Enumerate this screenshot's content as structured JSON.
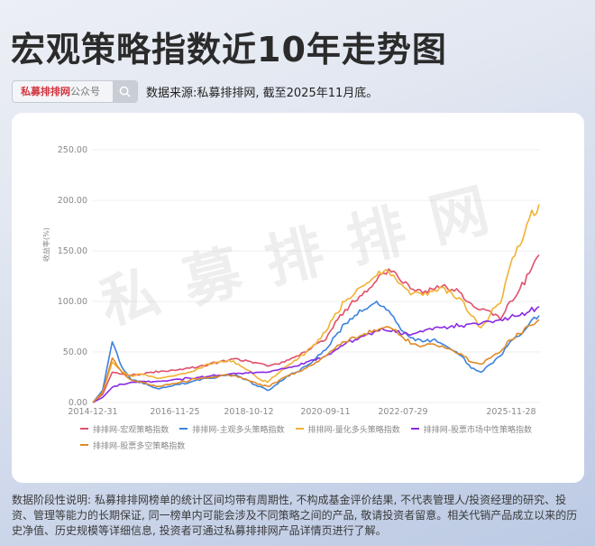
{
  "header": {
    "title": "宏观策略指数近10年走势图",
    "search_brand": "私募排排网",
    "search_suffix": "公众号",
    "search_icon": "search-icon",
    "source_note": "数据来源:私募排排网, 截至2025年11月底。"
  },
  "watermark": "私募排排网",
  "footer": {
    "disclaimer": "数据阶段性说明: 私募排排网榜单的统计区间均带有周期性, 不构成基金评价结果, 不代表管理人/投资经理的研究、投资、管理等能力的长期保证, 同一榜单内可能会涉及不同策略之间的产品, 敬请投资者留意。相关代销产品成立以来的历史净值、历史规模等详细信息, 投资者可通过私募排排网产品详情页进行了解。"
  },
  "chart_data": {
    "type": "line",
    "title": "宏观策略指数近10年走势图",
    "xlabel": "",
    "ylabel": "收益率(%)",
    "ylim": [
      0,
      250
    ],
    "yticks": [
      "0.00",
      "50.00",
      "100.00",
      "150.00",
      "200.00",
      "250.00"
    ],
    "xticks": [
      "2014-12-31",
      "2016-11-25",
      "2018-10-12",
      "2020-09-11",
      "2022-07-29",
      "2025-11-28"
    ],
    "grid": true,
    "legend_position": "bottom",
    "x": [
      "2014-12",
      "2015-03",
      "2015-05",
      "2015-06",
      "2015-07",
      "2015-09",
      "2015-12",
      "2016-03",
      "2016-06",
      "2016-09",
      "2016-12",
      "2017-03",
      "2017-06",
      "2017-09",
      "2017-12",
      "2018-03",
      "2018-06",
      "2018-09",
      "2018-12",
      "2019-03",
      "2019-06",
      "2019-09",
      "2019-12",
      "2020-03",
      "2020-06",
      "2020-09",
      "2020-12",
      "2021-03",
      "2021-06",
      "2021-09",
      "2021-12",
      "2022-03",
      "2022-06",
      "2022-09",
      "2022-12",
      "2023-03",
      "2023-06",
      "2023-09",
      "2023-12",
      "2024-03",
      "2024-06",
      "2024-09",
      "2024-12",
      "2025-03",
      "2025-06",
      "2025-09",
      "2025-11"
    ],
    "series": [
      {
        "name": "排排网-宏观策略指数",
        "color": "#e0506a",
        "values": [
          0,
          8,
          30,
          28,
          27,
          28,
          30,
          31,
          32,
          33,
          34,
          36,
          38,
          40,
          42,
          43,
          41,
          39,
          36,
          38,
          42,
          46,
          50,
          58,
          62,
          80,
          92,
          100,
          110,
          118,
          128,
          130,
          118,
          112,
          108,
          112,
          115,
          112,
          108,
          98,
          92,
          90,
          82,
          100,
          112,
          128,
          146
        ]
      },
      {
        "name": "排排网-主观多头策略指数",
        "color": "#3c82e0",
        "values": [
          0,
          12,
          60,
          35,
          22,
          20,
          16,
          14,
          16,
          18,
          20,
          22,
          24,
          26,
          28,
          26,
          22,
          16,
          12,
          18,
          26,
          30,
          36,
          44,
          52,
          66,
          78,
          86,
          92,
          98,
          95,
          85,
          70,
          64,
          60,
          62,
          58,
          52,
          46,
          34,
          30,
          38,
          46,
          60,
          66,
          78,
          86
        ]
      },
      {
        "name": "排排网-量化多头策略指数",
        "color": "#f0b232",
        "values": [
          0,
          10,
          40,
          30,
          26,
          28,
          26,
          24,
          26,
          28,
          30,
          34,
          38,
          40,
          42,
          38,
          32,
          24,
          20,
          28,
          36,
          42,
          50,
          58,
          70,
          88,
          100,
          108,
          116,
          124,
          130,
          126,
          115,
          108,
          106,
          110,
          114,
          108,
          102,
          86,
          74,
          88,
          98,
          135,
          155,
          182,
          196
        ]
      },
      {
        "name": "排排网-股票市场中性策略指数",
        "color": "#8a2be2",
        "values": [
          0,
          5,
          15,
          18,
          20,
          21,
          20,
          21,
          22,
          23,
          24,
          25,
          26,
          27,
          28,
          29,
          29,
          30,
          30,
          32,
          34,
          36,
          40,
          42,
          46,
          52,
          58,
          62,
          66,
          70,
          72,
          72,
          68,
          68,
          70,
          72,
          74,
          76,
          76,
          78,
          78,
          80,
          82,
          84,
          86,
          90,
          95
        ]
      },
      {
        "name": "排排网-股票多空策略指数",
        "color": "#e08a26",
        "values": [
          0,
          10,
          44,
          30,
          22,
          20,
          17,
          16,
          18,
          20,
          22,
          24,
          25,
          26,
          27,
          25,
          22,
          18,
          16,
          20,
          26,
          30,
          34,
          40,
          46,
          54,
          60,
          64,
          68,
          72,
          74,
          72,
          64,
          58,
          56,
          58,
          56,
          52,
          48,
          40,
          38,
          44,
          50,
          62,
          68,
          76,
          82
        ]
      }
    ]
  }
}
